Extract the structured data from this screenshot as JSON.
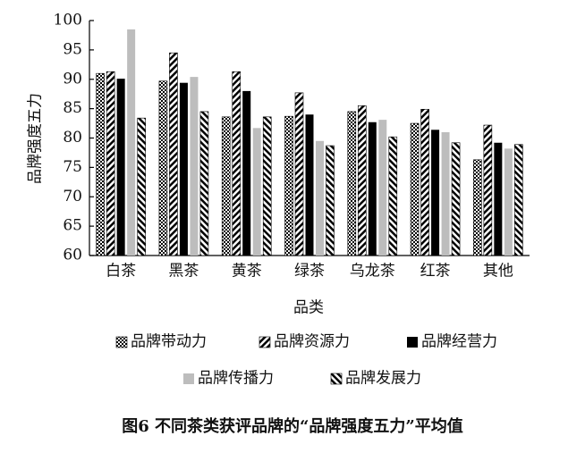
{
  "chart_data": {
    "type": "bar",
    "y_label": "品牌强度五力",
    "x_label": "品类",
    "caption": "图6 不同茶类获评品牌的“品牌强度五力”平均值",
    "categories": [
      "白茶",
      "黑茶",
      "黄茶",
      "绿茶",
      "乌龙茶",
      "红茶",
      "其他"
    ],
    "series": [
      {
        "name": "品牌带动力",
        "color": "#000000",
        "pattern": "checker",
        "values": [
          91.0,
          89.7,
          83.6,
          83.7,
          84.5,
          82.5,
          76.3
        ]
      },
      {
        "name": "品牌资源力",
        "color": "#000000",
        "pattern": "hatch-right",
        "values": [
          91.3,
          94.5,
          91.3,
          87.7,
          85.5,
          84.9,
          82.2
        ]
      },
      {
        "name": "品牌经营力",
        "color": "#000000",
        "pattern": "solid",
        "values": [
          90.1,
          89.4,
          88.0,
          84.0,
          82.7,
          81.4,
          79.2
        ]
      },
      {
        "name": "品牌传播力",
        "color": "#bdbdbd",
        "pattern": "solid",
        "values": [
          98.5,
          90.4,
          81.7,
          79.5,
          83.1,
          81.0,
          78.2
        ]
      },
      {
        "name": "品牌发展力",
        "color": "#000000",
        "pattern": "hatch-left",
        "values": [
          83.4,
          84.5,
          83.6,
          78.7,
          80.2,
          79.2,
          78.9
        ]
      }
    ],
    "ylim": [
      60,
      100
    ],
    "yticks": [
      60,
      65,
      70,
      75,
      80,
      85,
      90,
      95,
      100
    ],
    "grid": false
  }
}
